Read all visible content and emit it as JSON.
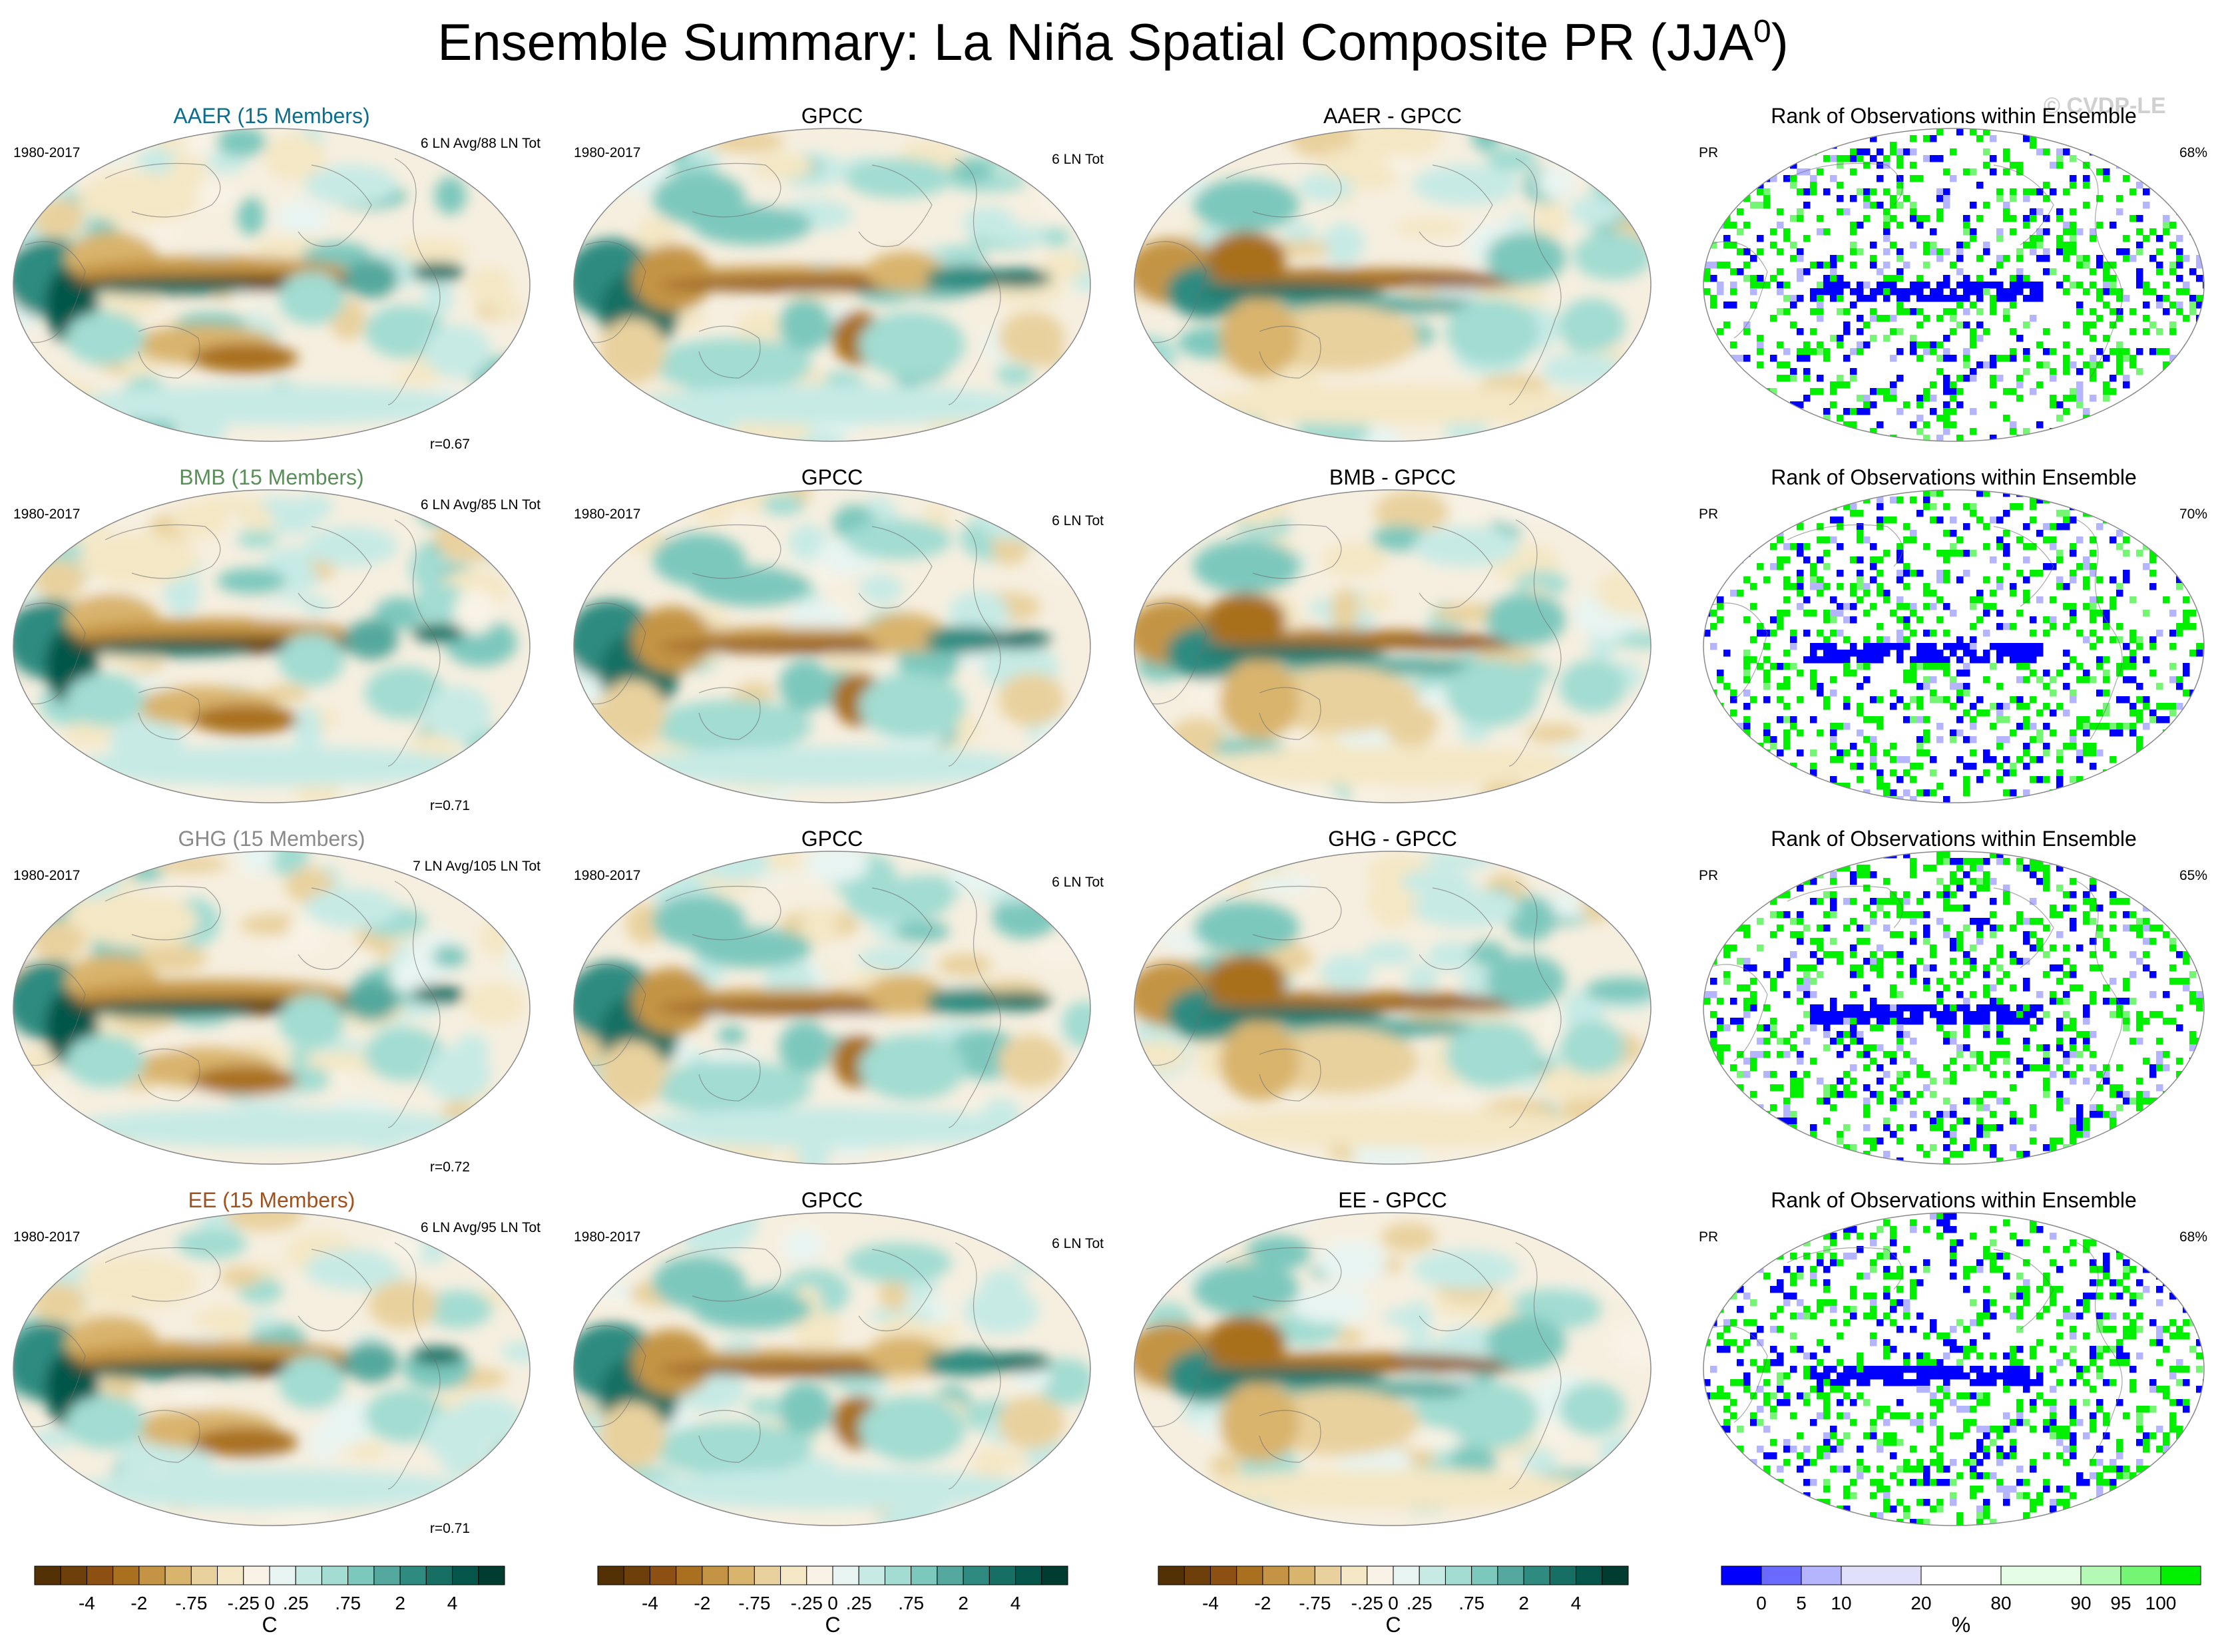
{
  "title": {
    "main": "Ensemble Summary: La Niña Spatial Composite PR (JJA",
    "superscript": "0",
    "close": ")"
  },
  "watermark": "© CVDP-LE",
  "colors": {
    "brbg": [
      "#543005",
      "#6e3f0b",
      "#8c5112",
      "#a9701f",
      "#c49444",
      "#d9b46d",
      "#e9d19e",
      "#f4e7c5",
      "#f8f3e6",
      "#e8f4f1",
      "#c7eae5",
      "#a2dcd2",
      "#7dc8bd",
      "#54a89d",
      "#2f8b80",
      "#176f63",
      "#05564a",
      "#003c30"
    ],
    "rank": [
      "#0000ff",
      "#6a6aff",
      "#b4b4ff",
      "#e0e0fa",
      "#ffffff",
      "#e4fde4",
      "#b4f9b4",
      "#74f574",
      "#00f000"
    ]
  },
  "rows": [
    {
      "model": "AAER (15 Members)",
      "model_color": "#0d6d8c",
      "period": "1980-2017",
      "count": "6 LN Avg/88 LN Tot",
      "r": "r=0.67",
      "obs_title": "GPCC",
      "obs_period": "1980-2017",
      "obs_count": "6 LN Tot",
      "diff_title": "AAER - GPCC",
      "rank_title": "Rank of Observations within Ensemble",
      "rank_var": "PR",
      "rank_pct": "68%"
    },
    {
      "model": "BMB (15 Members)",
      "model_color": "#5b8f5a",
      "period": "1980-2017",
      "count": "6 LN Avg/85 LN Tot",
      "r": "r=0.71",
      "obs_title": "GPCC",
      "obs_period": "1980-2017",
      "obs_count": "6 LN Tot",
      "diff_title": "BMB - GPCC",
      "rank_title": "Rank of Observations within Ensemble",
      "rank_var": "PR",
      "rank_pct": "70%"
    },
    {
      "model": "GHG (15 Members)",
      "model_color": "#8a8a8a",
      "period": "1980-2017",
      "count": "7 LN Avg/105 LN Tot",
      "r": "r=0.72",
      "obs_title": "GPCC",
      "obs_period": "1980-2017",
      "obs_count": "6 LN Tot",
      "diff_title": "GHG - GPCC",
      "rank_title": "Rank of Observations within Ensemble",
      "rank_var": "PR",
      "rank_pct": "65%"
    },
    {
      "model": "EE (15 Members)",
      "model_color": "#a0521e",
      "period": "1980-2017",
      "count": "6 LN Avg/95 LN Tot",
      "r": "r=0.71",
      "obs_title": "GPCC",
      "obs_period": "1980-2017",
      "obs_count": "6 LN Tot",
      "diff_title": "EE - GPCC",
      "rank_title": "Rank of Observations within Ensemble",
      "rank_var": "PR",
      "rank_pct": "68%"
    }
  ],
  "colorbars": [
    {
      "ticks": [
        "-4",
        "-2",
        "-.75",
        "-.25",
        "0",
        ".25",
        ".75",
        "2",
        "4"
      ],
      "unit": "C"
    },
    {
      "ticks": [
        "-4",
        "-2",
        "-.75",
        "-.25",
        "0",
        ".25",
        ".75",
        "2",
        "4"
      ],
      "unit": "C"
    },
    {
      "ticks": [
        "-4",
        "-2",
        "-.75",
        "-.25",
        "0",
        ".25",
        ".75",
        "2",
        "4"
      ],
      "unit": "C"
    },
    {
      "ticks": [
        "0",
        "5",
        "10",
        "20",
        "80",
        "90",
        "95",
        "100"
      ],
      "unit": "%"
    }
  ]
}
